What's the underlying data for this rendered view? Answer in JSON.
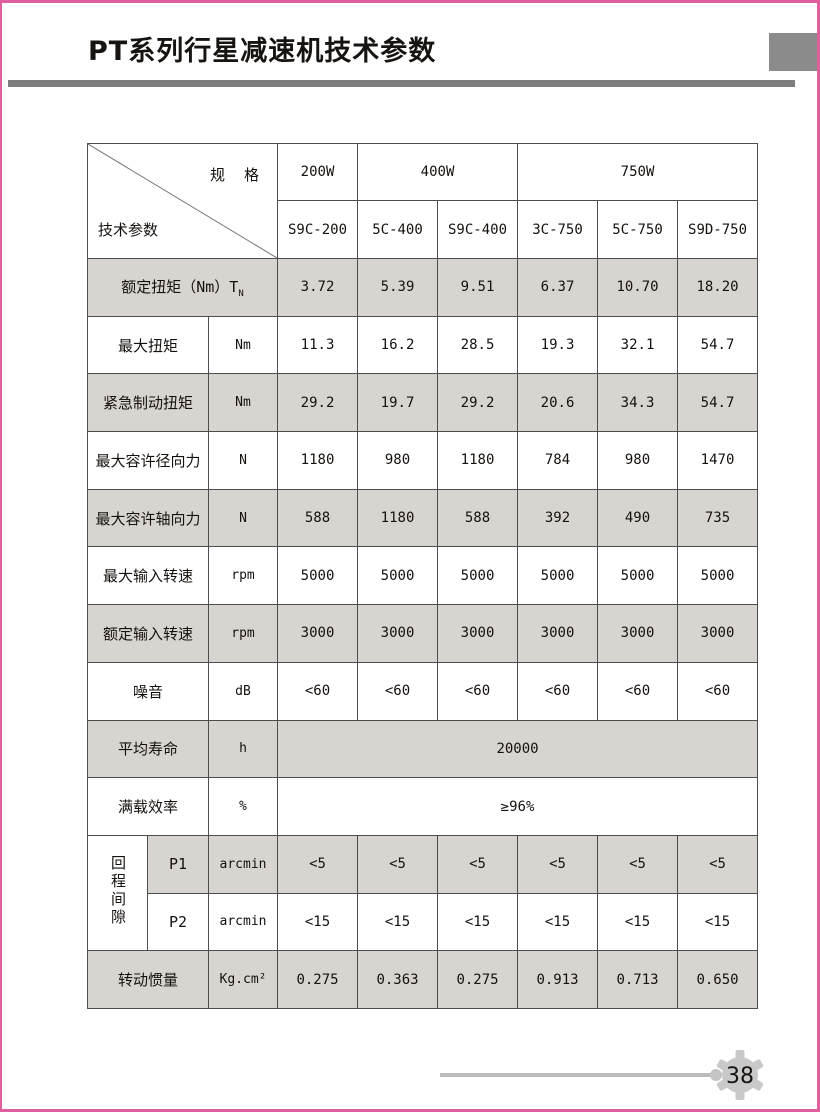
{
  "page": {
    "title": "PT系列行星减速机技术参数",
    "page_number": "38"
  },
  "colors": {
    "accent_pink": "#e0609f",
    "row_shade": "#d8d4cf",
    "bar_gray": "#7d7d7d",
    "square_gray": "#8b8b8b",
    "line_gray": "#bcbcbc",
    "badge_gray": "#c9c9c9",
    "border_dark": "#4d4d4d"
  },
  "table": {
    "corner": {
      "top_right": "规　格",
      "bottom_left": "技术参数"
    },
    "power_groups": [
      {
        "label": "200W",
        "span": 1
      },
      {
        "label": "400W",
        "span": 2
      },
      {
        "label": "750W",
        "span": 3
      }
    ],
    "models": [
      "S9C-200",
      "5C-400",
      "S9C-400",
      "3C-750",
      "5C-750",
      "S9D-750"
    ],
    "rows": [
      {
        "label": "额定扭矩（Nm）T",
        "label_sub": "N",
        "label_span": 3,
        "values": [
          "3.72",
          "5.39",
          "9.51",
          "6.37",
          "10.70",
          "18.20"
        ],
        "shaded": true
      },
      {
        "label": "最大扭矩",
        "label_span": 2,
        "unit": "Nm",
        "values": [
          "11.3",
          "16.2",
          "28.5",
          "19.3",
          "32.1",
          "54.7"
        ],
        "shaded": false
      },
      {
        "label": "紧急制动扭矩",
        "label_span": 2,
        "unit": "Nm",
        "values": [
          "29.2",
          "19.7",
          "29.2",
          "20.6",
          "34.3",
          "54.7"
        ],
        "shaded": true
      },
      {
        "label": "最大容许径向力",
        "label_span": 2,
        "unit": "N",
        "values": [
          "1180",
          "980",
          "1180",
          "784",
          "980",
          "1470"
        ],
        "shaded": false
      },
      {
        "label": "最大容许轴向力",
        "label_span": 2,
        "unit": "N",
        "values": [
          "588",
          "1180",
          "588",
          "392",
          "490",
          "735"
        ],
        "shaded": true
      },
      {
        "label": "最大输入转速",
        "label_span": 2,
        "unit": "rpm",
        "values": [
          "5000",
          "5000",
          "5000",
          "5000",
          "5000",
          "5000"
        ],
        "shaded": false
      },
      {
        "label": "额定输入转速",
        "label_span": 2,
        "unit": "rpm",
        "values": [
          "3000",
          "3000",
          "3000",
          "3000",
          "3000",
          "3000"
        ],
        "shaded": true
      },
      {
        "label": "噪音",
        "label_span": 2,
        "unit": "dB",
        "values": [
          "<60",
          "<60",
          "<60",
          "<60",
          "<60",
          "<60"
        ],
        "shaded": false
      },
      {
        "label": "平均寿命",
        "label_span": 2,
        "unit": "h",
        "value": "20000",
        "shaded": true
      },
      {
        "label": "满载效率",
        "label_span": 2,
        "unit": "%",
        "value": "≥96%",
        "shaded": false
      },
      {
        "group_label": "回程间隙",
        "label": "P1",
        "label_span": 1,
        "unit": "arcmin",
        "values": [
          "<5",
          "<5",
          "<5",
          "<5",
          "<5",
          "<5"
        ],
        "shaded": true
      },
      {
        "label": "P2",
        "label_span": 1,
        "unit": "arcmin",
        "values": [
          "<15",
          "<15",
          "<15",
          "<15",
          "<15",
          "<15"
        ],
        "shaded": false
      },
      {
        "label": "转动惯量",
        "label_span": 2,
        "unit": "Kg.cm²",
        "values": [
          "0.275",
          "0.363",
          "0.275",
          "0.913",
          "0.713",
          "0.650"
        ],
        "shaded": true
      }
    ]
  }
}
